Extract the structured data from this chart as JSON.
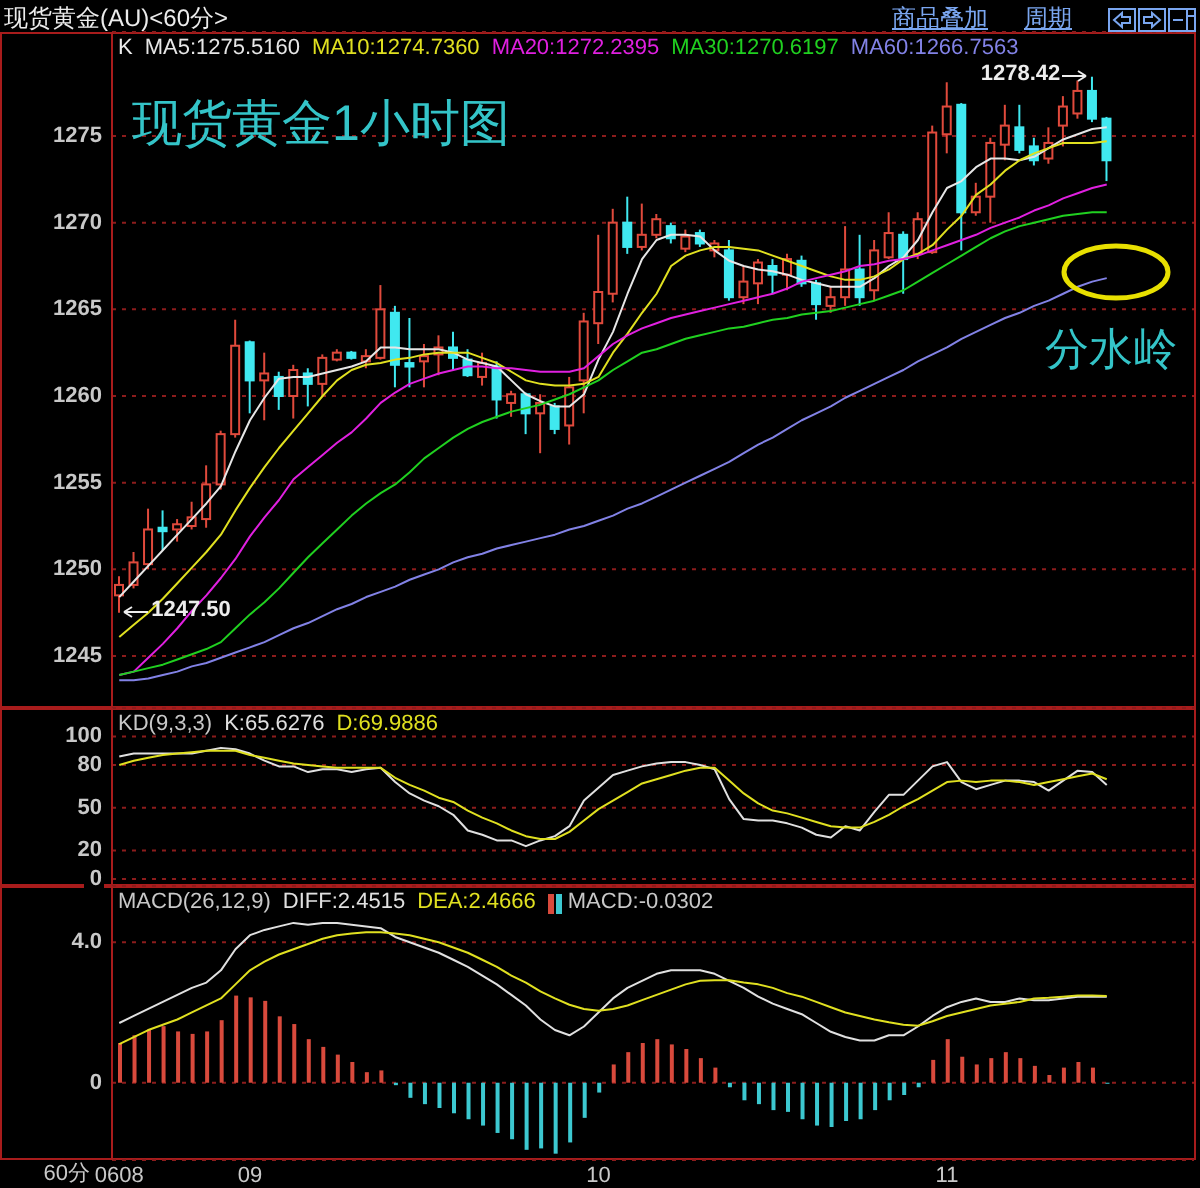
{
  "chart_data": [
    {
      "type": "candlestick",
      "title": "现货黄金(AU)<60分>",
      "subtitle": "现货黄金1小时图",
      "legend_title": "K",
      "categories": [
        "0608",
        null,
        null,
        null,
        null,
        null,
        null,
        null,
        null,
        "09",
        null,
        null,
        null,
        null,
        null,
        null,
        null,
        null,
        null,
        null,
        null,
        null,
        null,
        null,
        null,
        null,
        null,
        null,
        null,
        null,
        null,
        null,
        null,
        "10",
        null,
        null,
        null,
        null,
        null,
        null,
        null,
        null,
        null,
        null,
        null,
        null,
        null,
        null,
        null,
        null,
        null,
        null,
        null,
        null,
        null,
        null,
        null,
        "11",
        null,
        null,
        null,
        null,
        null,
        null,
        null,
        null,
        null,
        null,
        null
      ],
      "ohlc": [
        [
          1248.5,
          1249.6,
          1247.5,
          1249.1
        ],
        [
          1249.1,
          1251.0,
          1248.9,
          1250.4
        ],
        [
          1250.3,
          1253.5,
          1250.0,
          1252.3
        ],
        [
          1252.4,
          1253.4,
          1251.1,
          1252.2
        ],
        [
          1252.3,
          1252.9,
          1251.6,
          1252.6
        ],
        [
          1252.5,
          1253.9,
          1252.3,
          1253.0
        ],
        [
          1252.9,
          1256.0,
          1252.4,
          1254.9
        ],
        [
          1254.9,
          1258.0,
          1254.6,
          1257.8
        ],
        [
          1257.8,
          1264.4,
          1257.6,
          1262.9
        ],
        [
          1263.1,
          1263.2,
          1259.0,
          1260.9
        ],
        [
          1260.9,
          1262.5,
          1258.6,
          1261.3
        ],
        [
          1261.1,
          1261.4,
          1259.2,
          1260.0
        ],
        [
          1260.0,
          1261.8,
          1258.7,
          1261.5
        ],
        [
          1261.3,
          1261.6,
          1259.4,
          1260.7
        ],
        [
          1260.7,
          1262.4,
          1260.0,
          1262.2
        ],
        [
          1262.1,
          1262.7,
          1262.0,
          1262.5
        ],
        [
          1262.5,
          1262.6,
          1262.1,
          1262.2
        ],
        [
          1262.0,
          1262.7,
          1261.6,
          1262.3
        ],
        [
          1262.2,
          1266.4,
          1262.1,
          1265.0
        ],
        [
          1264.8,
          1265.2,
          1260.5,
          1261.8
        ],
        [
          1261.9,
          1264.5,
          1260.5,
          1261.7
        ],
        [
          1262.0,
          1263.0,
          1260.5,
          1262.3
        ],
        [
          1262.4,
          1263.5,
          1261.2,
          1262.8
        ],
        [
          1262.8,
          1263.7,
          1261.5,
          1262.2
        ],
        [
          1262.1,
          1262.7,
          1261.1,
          1261.2
        ],
        [
          1261.1,
          1262.5,
          1260.6,
          1261.9
        ],
        [
          1261.7,
          1262.0,
          1258.7,
          1259.8
        ],
        [
          1259.6,
          1260.3,
          1258.8,
          1260.1
        ],
        [
          1260.1,
          1260.2,
          1257.8,
          1259.0
        ],
        [
          1259.0,
          1260.1,
          1256.7,
          1259.6
        ],
        [
          1259.4,
          1259.6,
          1257.8,
          1258.1
        ],
        [
          1258.3,
          1261.1,
          1257.2,
          1260.5
        ],
        [
          1260.9,
          1264.8,
          1259.0,
          1264.3
        ],
        [
          1264.2,
          1269.3,
          1263.0,
          1266.0
        ],
        [
          1265.9,
          1270.8,
          1265.4,
          1270.0
        ],
        [
          1270.0,
          1271.5,
          1268.2,
          1268.6
        ],
        [
          1268.6,
          1271.1,
          1268.4,
          1269.3
        ],
        [
          1269.3,
          1270.5,
          1269.1,
          1270.2
        ],
        [
          1269.8,
          1270.0,
          1268.8,
          1269.1
        ],
        [
          1268.5,
          1269.6,
          1268.3,
          1269.2
        ],
        [
          1269.4,
          1269.6,
          1268.6,
          1268.8
        ],
        [
          1268.4,
          1269.0,
          1268.0,
          1268.8
        ],
        [
          1268.4,
          1269.0,
          1265.5,
          1265.7
        ],
        [
          1265.7,
          1267.5,
          1265.3,
          1266.6
        ],
        [
          1266.5,
          1267.9,
          1265.3,
          1267.7
        ],
        [
          1267.5,
          1267.9,
          1265.9,
          1267.0
        ],
        [
          1267.0,
          1268.2,
          1266.1,
          1267.9
        ],
        [
          1267.8,
          1268.1,
          1266.3,
          1266.5
        ],
        [
          1266.5,
          1266.7,
          1264.4,
          1265.3
        ],
        [
          1265.2,
          1266.3,
          1264.8,
          1265.7
        ],
        [
          1265.7,
          1269.8,
          1265.2,
          1267.3
        ],
        [
          1267.3,
          1269.3,
          1265.2,
          1265.7
        ],
        [
          1266.1,
          1269.0,
          1265.5,
          1268.4
        ],
        [
          1268.0,
          1270.6,
          1267.9,
          1269.4
        ],
        [
          1269.3,
          1269.5,
          1265.9,
          1267.9
        ],
        [
          1268.2,
          1270.6,
          1267.9,
          1270.2
        ],
        [
          1268.3,
          1275.6,
          1268.2,
          1275.2
        ],
        [
          1275.1,
          1278.1,
          1274.0,
          1276.7
        ],
        [
          1276.8,
          1276.9,
          1268.4,
          1270.6
        ],
        [
          1270.6,
          1272.3,
          1270.4,
          1271.5
        ],
        [
          1271.5,
          1274.9,
          1270.0,
          1274.6
        ],
        [
          1274.5,
          1276.8,
          1273.6,
          1275.6
        ],
        [
          1275.5,
          1276.8,
          1274.0,
          1274.2
        ],
        [
          1274.4,
          1274.9,
          1273.3,
          1273.6
        ],
        [
          1273.7,
          1275.5,
          1273.4,
          1274.6
        ],
        [
          1275.6,
          1277.3,
          1274.4,
          1276.7
        ],
        [
          1276.3,
          1278.2,
          1276.0,
          1277.6
        ],
        [
          1277.6,
          1278.42,
          1275.8,
          1276.0
        ],
        [
          1276.0,
          1276.1,
          1272.4,
          1273.6
        ]
      ],
      "colors": [
        "#e04a3c",
        "#e04a3c",
        "#e04a3c",
        "#40e8f0",
        "#e04a3c",
        "#e04a3c",
        "#e04a3c",
        "#e04a3c",
        "#e04a3c",
        "#40e8f0",
        "#e04a3c",
        "#40e8f0",
        "#e04a3c",
        "#40e8f0",
        "#e04a3c",
        "#e04a3c",
        "#40e8f0",
        "#e04a3c",
        "#e04a3c",
        "#40e8f0",
        "#40e8f0",
        "#e04a3c",
        "#e04a3c",
        "#40e8f0",
        "#40e8f0",
        "#e04a3c",
        "#40e8f0",
        "#e04a3c",
        "#40e8f0",
        "#e04a3c",
        "#40e8f0",
        "#e04a3c",
        "#e04a3c",
        "#e04a3c",
        "#e04a3c",
        "#40e8f0",
        "#e04a3c",
        "#e04a3c",
        "#40e8f0",
        "#e04a3c",
        "#40e8f0",
        "#e04a3c",
        "#40e8f0",
        "#e04a3c",
        "#e04a3c",
        "#40e8f0",
        "#e04a3c",
        "#40e8f0",
        "#40e8f0",
        "#e04a3c",
        "#e04a3c",
        "#40e8f0",
        "#e04a3c",
        "#e04a3c",
        "#40e8f0",
        "#e04a3c",
        "#e04a3c",
        "#e04a3c",
        "#40e8f0",
        "#e04a3c",
        "#e04a3c",
        "#e04a3c",
        "#40e8f0",
        "#40e8f0",
        "#e04a3c",
        "#e04a3c",
        "#e04a3c",
        "#40e8f0",
        "#40e8f0"
      ],
      "series": [
        {
          "type": "line",
          "name": "MA5:1275.5160",
          "color": "#e6e6e6",
          "values": [
            1248.4,
            1249.3,
            1250.2,
            1251.1,
            1252.0,
            1252.9,
            1253.8,
            1254.8,
            1256.8,
            1258.6,
            1259.9,
            1261.0,
            1261.1,
            1261.1,
            1261.3,
            1261.5,
            1261.7,
            1262.0,
            1262.8,
            1262.8,
            1262.7,
            1262.7,
            1262.7,
            1262.5,
            1262.1,
            1261.9,
            1261.7,
            1260.9,
            1260.1,
            1259.7,
            1259.4,
            1259.4,
            1260.1,
            1262.1,
            1263.7,
            1265.9,
            1267.9,
            1269.0,
            1269.3,
            1269.3,
            1269.2,
            1268.4,
            1267.8,
            1267.5,
            1267.3,
            1267.2,
            1267.0,
            1266.7,
            1266.5,
            1266.3,
            1266.3,
            1266.3,
            1266.8,
            1267.5,
            1268.0,
            1269.0,
            1270.6,
            1272.0,
            1272.4,
            1273.2,
            1273.7,
            1273.7,
            1273.6,
            1273.8,
            1274.3,
            1274.8,
            1275.1,
            1275.4,
            1275.5
          ]
        },
        {
          "type": "line",
          "name": "MA10:1274.7360",
          "color": "#e0e020",
          "values": [
            1246.1,
            1246.8,
            1247.5,
            1248.3,
            1249.2,
            1250.1,
            1251.0,
            1252.0,
            1253.4,
            1254.7,
            1255.9,
            1257.0,
            1258.0,
            1259.0,
            1260.0,
            1260.9,
            1261.5,
            1261.8,
            1261.9,
            1262.1,
            1262.2,
            1262.4,
            1262.5,
            1262.5,
            1262.5,
            1262.2,
            1261.9,
            1261.4,
            1260.9,
            1260.7,
            1260.6,
            1260.6,
            1260.7,
            1261.1,
            1262.5,
            1263.6,
            1264.8,
            1265.9,
            1267.5,
            1268.1,
            1268.4,
            1268.6,
            1268.6,
            1268.5,
            1268.4,
            1268.1,
            1267.8,
            1267.5,
            1267.2,
            1266.9,
            1266.7,
            1266.7,
            1266.9,
            1267.3,
            1267.9,
            1268.2,
            1268.7,
            1269.6,
            1270.4,
            1271.6,
            1272.2,
            1273.0,
            1273.6,
            1274.0,
            1274.3,
            1274.6,
            1274.6,
            1274.6,
            1274.7
          ]
        },
        {
          "type": "line",
          "name": "MA20:1272.2395",
          "color": "#e020e0",
          "values": [
            1243.9,
            1244.1,
            1244.9,
            1245.7,
            1246.6,
            1247.6,
            1248.5,
            1249.5,
            1250.6,
            1251.9,
            1253.0,
            1254.0,
            1255.2,
            1255.9,
            1256.6,
            1257.3,
            1257.9,
            1258.7,
            1259.6,
            1260.2,
            1260.7,
            1261.0,
            1261.3,
            1261.5,
            1261.7,
            1261.7,
            1261.6,
            1261.6,
            1261.5,
            1261.4,
            1261.4,
            1261.4,
            1261.6,
            1262.3,
            1263.0,
            1263.5,
            1263.9,
            1264.2,
            1264.5,
            1264.7,
            1264.9,
            1265.1,
            1265.3,
            1265.5,
            1265.7,
            1265.9,
            1266.2,
            1266.6,
            1266.8,
            1267.0,
            1267.2,
            1267.5,
            1267.6,
            1267.8,
            1267.9,
            1268.1,
            1268.4,
            1268.7,
            1269.0,
            1269.3,
            1269.7,
            1270.0,
            1270.3,
            1270.7,
            1271.0,
            1271.4,
            1271.7,
            1272.0,
            1272.2
          ]
        },
        {
          "type": "line",
          "name": "MA30:1270.6197",
          "color": "#20d020",
          "values": [
            1243.9,
            1244.1,
            1244.3,
            1244.5,
            1244.8,
            1245.1,
            1245.4,
            1245.8,
            1246.6,
            1247.4,
            1248.1,
            1248.9,
            1249.8,
            1250.7,
            1251.5,
            1252.3,
            1253.1,
            1253.8,
            1254.4,
            1254.9,
            1255.6,
            1256.4,
            1257.0,
            1257.6,
            1258.1,
            1258.5,
            1258.8,
            1259.1,
            1259.3,
            1259.5,
            1259.8,
            1260.1,
            1260.5,
            1260.9,
            1261.5,
            1262.0,
            1262.5,
            1262.7,
            1263.0,
            1263.3,
            1263.5,
            1263.7,
            1263.9,
            1264.0,
            1264.2,
            1264.4,
            1264.5,
            1264.7,
            1264.8,
            1264.9,
            1265.1,
            1265.3,
            1265.5,
            1265.8,
            1266.1,
            1266.6,
            1267.1,
            1267.6,
            1268.1,
            1268.6,
            1269.1,
            1269.5,
            1269.8,
            1270.0,
            1270.2,
            1270.4,
            1270.5,
            1270.6,
            1270.6
          ]
        },
        {
          "type": "line",
          "name": "MA60:1266.7563",
          "color": "#8282e6",
          "values": [
            1243.6,
            1243.6,
            1243.7,
            1243.9,
            1244.1,
            1244.4,
            1244.6,
            1244.9,
            1245.2,
            1245.5,
            1245.8,
            1246.2,
            1246.6,
            1246.9,
            1247.3,
            1247.7,
            1248.0,
            1248.4,
            1248.7,
            1249.0,
            1249.4,
            1249.7,
            1250.0,
            1250.4,
            1250.7,
            1250.9,
            1251.2,
            1251.4,
            1251.6,
            1251.8,
            1252.0,
            1252.3,
            1252.5,
            1252.8,
            1253.1,
            1253.5,
            1253.8,
            1254.2,
            1254.6,
            1255.0,
            1255.4,
            1255.8,
            1256.2,
            1256.7,
            1257.2,
            1257.6,
            1258.1,
            1258.6,
            1259.0,
            1259.4,
            1259.9,
            1260.3,
            1260.7,
            1261.1,
            1261.5,
            1262.0,
            1262.4,
            1262.8,
            1263.3,
            1263.7,
            1264.1,
            1264.5,
            1264.8,
            1265.2,
            1265.5,
            1265.9,
            1266.3,
            1266.6,
            1266.8
          ]
        }
      ],
      "ylim": [
        1242,
        1281
      ],
      "yticks": [
        1245,
        1250,
        1255,
        1260,
        1265,
        1270,
        1275
      ],
      "grid": "y",
      "legend": "top left",
      "tick_labels": "y",
      "annotations": [
        "商品叠加",
        "周期",
        "1278.42",
        "1247.50",
        "分水岭"
      ]
    },
    {
      "type": "line",
      "title": "KD(9,3,3)",
      "categories": [
        "0608",
        null,
        null,
        null,
        null,
        null,
        null,
        null,
        null,
        "09",
        null,
        null,
        null,
        null,
        null,
        null,
        null,
        null,
        null,
        null,
        null,
        null,
        null,
        null,
        null,
        null,
        null,
        null,
        null,
        null,
        null,
        null,
        null,
        "10",
        null,
        null,
        null,
        null,
        null,
        null,
        null,
        null,
        null,
        null,
        null,
        null,
        null,
        null,
        null,
        null,
        null,
        null,
        null,
        null,
        null,
        null,
        null,
        "11",
        null,
        null,
        null,
        null,
        null,
        null,
        null,
        null,
        null,
        null,
        null
      ],
      "series": [
        {
          "name": "K:65.6276",
          "color": "#e0e0e0",
          "values": [
            86,
            88,
            88,
            88,
            88,
            88,
            90,
            92,
            91,
            88,
            83,
            79,
            79,
            75,
            77,
            77,
            75,
            77,
            78,
            68,
            60,
            55,
            51,
            45,
            34,
            31,
            27,
            27,
            23,
            27,
            30,
            37,
            55,
            64,
            73,
            76,
            79,
            81,
            82,
            82,
            80,
            77,
            56,
            42,
            41,
            41,
            39,
            36,
            31,
            29,
            37,
            34,
            47,
            59,
            59,
            69,
            79,
            82,
            68,
            63,
            66,
            69,
            69,
            68,
            62,
            69,
            76,
            75,
            66
          ]
        },
        {
          "name": "D:69.9886",
          "color": "#e0e020",
          "values": [
            80,
            83,
            85,
            87,
            88,
            89,
            90,
            90,
            90,
            87,
            85,
            83,
            81,
            80,
            79,
            78,
            78,
            78,
            78,
            71,
            66,
            62,
            57,
            54,
            48,
            43,
            39,
            34,
            30,
            28,
            28,
            33,
            41,
            49,
            55,
            61,
            67,
            70,
            73,
            76,
            78,
            78,
            69,
            60,
            53,
            48,
            46,
            43,
            40,
            37,
            36,
            36,
            40,
            45,
            51,
            56,
            62,
            68,
            69,
            68,
            69,
            69,
            68,
            66,
            68,
            70,
            72,
            74,
            70
          ]
        }
      ],
      "ylim": [
        -5,
        120
      ],
      "yticks": [
        0,
        20,
        50,
        80,
        100
      ],
      "grid": "y",
      "legend": "top left",
      "tick_labels": "y"
    },
    {
      "type": "line",
      "title": "MACD(26,12,9)",
      "xlabel": "60分",
      "categories": [
        "0608",
        null,
        null,
        null,
        null,
        null,
        null,
        null,
        null,
        "09",
        null,
        null,
        null,
        null,
        null,
        null,
        null,
        null,
        null,
        null,
        null,
        null,
        null,
        null,
        null,
        null,
        null,
        null,
        null,
        null,
        null,
        null,
        null,
        "10",
        null,
        null,
        null,
        null,
        null,
        null,
        null,
        null,
        null,
        null,
        null,
        null,
        null,
        null,
        null,
        null,
        null,
        null,
        null,
        null,
        null,
        null,
        null,
        "11",
        null,
        null,
        null,
        null,
        null,
        null,
        null,
        null,
        null,
        null,
        null
      ],
      "series": [
        {
          "name": "DIFF:2.4515",
          "color": "#e0e0e0",
          "values": [
            1.7,
            1.9,
            2.1,
            2.3,
            2.5,
            2.7,
            2.85,
            3.2,
            3.8,
            4.2,
            4.35,
            4.45,
            4.55,
            4.5,
            4.55,
            4.55,
            4.5,
            4.45,
            4.4,
            4.15,
            4.0,
            3.85,
            3.7,
            3.5,
            3.3,
            3.05,
            2.8,
            2.5,
            2.2,
            1.8,
            1.5,
            1.35,
            1.6,
            2.0,
            2.4,
            2.7,
            2.9,
            3.1,
            3.2,
            3.2,
            3.2,
            3.1,
            2.9,
            2.7,
            2.45,
            2.25,
            2.1,
            1.95,
            1.7,
            1.45,
            1.3,
            1.2,
            1.2,
            1.35,
            1.35,
            1.6,
            1.9,
            2.15,
            2.3,
            2.4,
            2.3,
            2.3,
            2.4,
            2.35,
            2.35,
            2.4,
            2.45,
            2.45,
            2.45
          ]
        },
        {
          "name": "DEA:2.4666",
          "color": "#e0e020",
          "values": [
            1.1,
            1.3,
            1.5,
            1.65,
            1.8,
            2.0,
            2.2,
            2.4,
            2.8,
            3.2,
            3.45,
            3.65,
            3.8,
            3.95,
            4.1,
            4.2,
            4.25,
            4.28,
            4.28,
            4.25,
            4.2,
            4.1,
            4.0,
            3.85,
            3.7,
            3.5,
            3.3,
            3.05,
            2.85,
            2.6,
            2.4,
            2.22,
            2.1,
            2.05,
            2.1,
            2.2,
            2.35,
            2.5,
            2.65,
            2.8,
            2.9,
            2.92,
            2.92,
            2.85,
            2.8,
            2.7,
            2.55,
            2.45,
            2.3,
            2.15,
            2.0,
            1.9,
            1.8,
            1.72,
            1.65,
            1.62,
            1.75,
            1.9,
            2.0,
            2.1,
            2.2,
            2.25,
            2.3,
            2.4,
            2.42,
            2.45,
            2.48,
            2.48,
            2.47
          ]
        },
        {
          "type": "bar",
          "name": "MACD:-0.0302",
          "values": [
            1.13,
            1.35,
            1.52,
            1.61,
            1.46,
            1.39,
            1.46,
            1.78,
            2.48,
            2.43,
            2.33,
            1.89,
            1.67,
            1.24,
            1.02,
            0.8,
            0.59,
            0.3,
            0.35,
            -0.07,
            -0.43,
            -0.61,
            -0.72,
            -0.87,
            -1.04,
            -1.22,
            -1.43,
            -1.61,
            -1.91,
            -1.87,
            -2.02,
            -1.7,
            -1.0,
            -0.28,
            0.52,
            0.87,
            1.13,
            1.24,
            1.09,
            0.96,
            0.7,
            0.43,
            -0.13,
            -0.5,
            -0.61,
            -0.78,
            -0.83,
            -1.04,
            -1.22,
            -1.26,
            -1.09,
            -1.04,
            -0.78,
            -0.5,
            -0.35,
            -0.13,
            0.65,
            1.24,
            0.74,
            0.52,
            0.7,
            0.87,
            0.7,
            0.48,
            0.22,
            0.43,
            0.59,
            0.43,
            -0.03
          ],
          "colors": [
            "#d84a3c",
            "#d84a3c",
            "#d84a3c",
            "#d84a3c",
            "#d84a3c",
            "#d84a3c",
            "#d84a3c",
            "#d84a3c",
            "#d84a3c",
            "#d84a3c",
            "#d84a3c",
            "#d84a3c",
            "#d84a3c",
            "#d84a3c",
            "#d84a3c",
            "#d84a3c",
            "#d84a3c",
            "#d84a3c",
            "#d84a3c",
            "#3cc8d0",
            "#3cc8d0",
            "#3cc8d0",
            "#3cc8d0",
            "#3cc8d0",
            "#3cc8d0",
            "#3cc8d0",
            "#3cc8d0",
            "#3cc8d0",
            "#3cc8d0",
            "#3cc8d0",
            "#3cc8d0",
            "#3cc8d0",
            "#3cc8d0",
            "#3cc8d0",
            "#d84a3c",
            "#d84a3c",
            "#d84a3c",
            "#d84a3c",
            "#d84a3c",
            "#d84a3c",
            "#d84a3c",
            "#d84a3c",
            "#3cc8d0",
            "#3cc8d0",
            "#3cc8d0",
            "#3cc8d0",
            "#3cc8d0",
            "#3cc8d0",
            "#3cc8d0",
            "#3cc8d0",
            "#3cc8d0",
            "#3cc8d0",
            "#3cc8d0",
            "#3cc8d0",
            "#3cc8d0",
            "#3cc8d0",
            "#d84a3c",
            "#d84a3c",
            "#d84a3c",
            "#d84a3c",
            "#d84a3c",
            "#d84a3c",
            "#d84a3c",
            "#d84a3c",
            "#d84a3c",
            "#d84a3c",
            "#d84a3c",
            "#d84a3c",
            "#3cc8d0"
          ]
        }
      ],
      "ylim": [
        -2.2,
        5.6
      ],
      "yticks": [
        0,
        {
          "value": 4,
          "label": "4.0"
        }
      ],
      "grid": "y",
      "legend": "top left"
    }
  ]
}
